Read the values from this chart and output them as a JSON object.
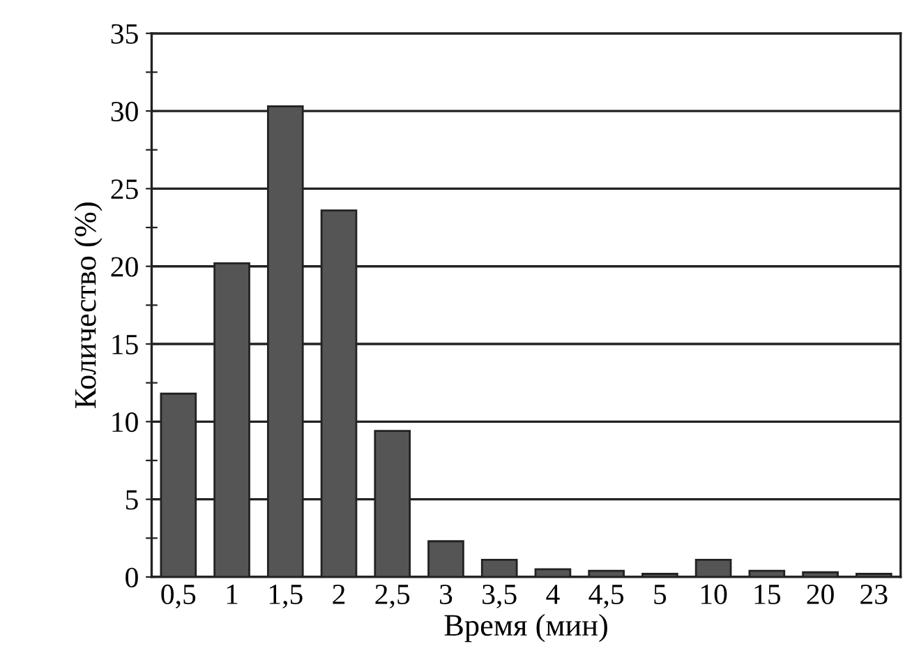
{
  "chart_data": {
    "type": "bar",
    "xlabel": "Время (мин)",
    "ylabel": "Количество (%)",
    "categories": [
      "0,5",
      "1",
      "1,5",
      "2",
      "2,5",
      "3",
      "3,5",
      "4",
      "4,5",
      "5",
      "10",
      "15",
      "20",
      "23"
    ],
    "values": [
      11.8,
      20.2,
      30.3,
      23.6,
      9.4,
      2.3,
      1.1,
      0.5,
      0.4,
      0.2,
      1.1,
      0.4,
      0.3,
      0.2
    ],
    "color": "#555555",
    "ylim": [
      0,
      35
    ],
    "yticks": [
      0,
      {
        "value": 2.5,
        "label": null
      },
      5,
      {
        "value": 7.5,
        "label": null
      },
      10,
      {
        "value": 12.5,
        "label": null
      },
      15,
      {
        "value": 17.5,
        "label": null
      },
      20,
      {
        "value": 22.5,
        "label": null
      },
      25,
      {
        "value": 27.5,
        "label": null
      },
      30,
      {
        "value": 32.5,
        "label": null
      },
      35
    ],
    "grid": "y"
  }
}
